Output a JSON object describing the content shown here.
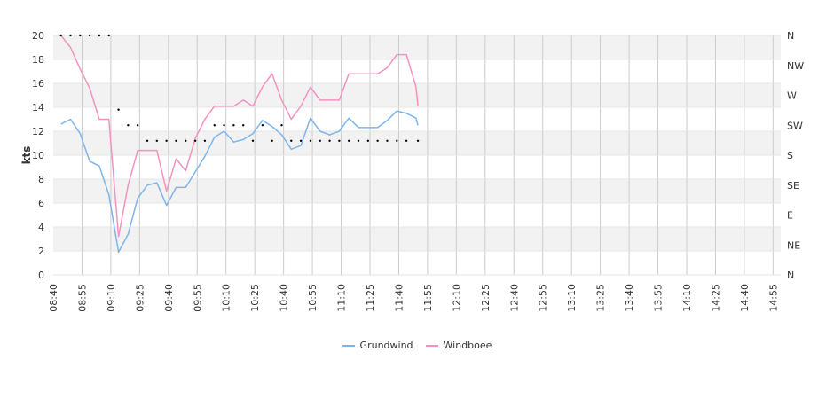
{
  "chart_data": {
    "type": "line",
    "ylabel": "kts",
    "ylim": [
      0,
      20
    ],
    "y_ticks": [
      "0",
      "2",
      "4",
      "6",
      "8",
      "10",
      "12",
      "14",
      "16",
      "18",
      "20"
    ],
    "x_ticks": [
      "08:40",
      "08:55",
      "09:10",
      "09:25",
      "09:40",
      "09:55",
      "10:10",
      "10:25",
      "10:40",
      "10:55",
      "11:10",
      "11:25",
      "11:40",
      "11:55",
      "12:10",
      "12:25",
      "12:40",
      "12:55",
      "13:10",
      "13:25",
      "13:40",
      "13:55",
      "14:10",
      "14:25",
      "14:40",
      "14:55"
    ],
    "x_start": "08:40",
    "x_end": "14:59",
    "right_axis_labels": [
      "N",
      "NE",
      "E",
      "SE",
      "S",
      "SW",
      "W",
      "NW",
      "N"
    ],
    "grid": true,
    "legend_position": "bottom",
    "series": [
      {
        "name": "Grundwind",
        "color": "#7cb5ec",
        "points": [
          [
            "08:44",
            12.6
          ],
          [
            "08:49",
            13.0
          ],
          [
            "08:54",
            11.8
          ],
          [
            "08:59",
            9.5
          ],
          [
            "09:04",
            9.1
          ],
          [
            "09:09",
            6.7
          ],
          [
            "09:14",
            1.9
          ],
          [
            "09:19",
            3.4
          ],
          [
            "09:24",
            6.4
          ],
          [
            "09:29",
            7.5
          ],
          [
            "09:34",
            7.7
          ],
          [
            "09:39",
            5.8
          ],
          [
            "09:44",
            7.3
          ],
          [
            "09:49",
            7.3
          ],
          [
            "09:54",
            8.6
          ],
          [
            "09:59",
            9.9
          ],
          [
            "10:04",
            11.5
          ],
          [
            "10:09",
            12.0
          ],
          [
            "10:14",
            11.1
          ],
          [
            "10:19",
            11.3
          ],
          [
            "10:24",
            11.8
          ],
          [
            "10:29",
            12.9
          ],
          [
            "10:34",
            12.4
          ],
          [
            "10:39",
            11.7
          ],
          [
            "10:44",
            10.5
          ],
          [
            "10:49",
            10.8
          ],
          [
            "10:54",
            13.1
          ],
          [
            "10:59",
            12.0
          ],
          [
            "11:04",
            11.7
          ],
          [
            "11:09",
            12.0
          ],
          [
            "11:14",
            13.1
          ],
          [
            "11:19",
            12.3
          ],
          [
            "11:24",
            12.3
          ],
          [
            "11:29",
            12.3
          ],
          [
            "11:34",
            12.9
          ],
          [
            "11:39",
            13.7
          ],
          [
            "11:44",
            13.5
          ],
          [
            "11:49",
            13.1
          ],
          [
            "11:50",
            12.5
          ]
        ]
      },
      {
        "name": "Windboee",
        "color": "#f491c0",
        "points": [
          [
            "08:44",
            20.0
          ],
          [
            "08:49",
            19.0
          ],
          [
            "08:54",
            17.2
          ],
          [
            "08:59",
            15.6
          ],
          [
            "09:04",
            13.0
          ],
          [
            "09:09",
            13.0
          ],
          [
            "09:14",
            3.2
          ],
          [
            "09:19",
            7.5
          ],
          [
            "09:24",
            10.4
          ],
          [
            "09:29",
            10.4
          ],
          [
            "09:34",
            10.4
          ],
          [
            "09:39",
            7.0
          ],
          [
            "09:44",
            9.7
          ],
          [
            "09:49",
            8.7
          ],
          [
            "09:54",
            11.4
          ],
          [
            "09:59",
            13.0
          ],
          [
            "10:04",
            14.1
          ],
          [
            "10:09",
            14.1
          ],
          [
            "10:14",
            14.1
          ],
          [
            "10:19",
            14.6
          ],
          [
            "10:24",
            14.1
          ],
          [
            "10:29",
            15.7
          ],
          [
            "10:34",
            16.8
          ],
          [
            "10:39",
            14.6
          ],
          [
            "10:44",
            13.0
          ],
          [
            "10:49",
            14.1
          ],
          [
            "10:54",
            15.7
          ],
          [
            "10:59",
            14.6
          ],
          [
            "11:04",
            14.6
          ],
          [
            "11:09",
            14.6
          ],
          [
            "11:14",
            16.8
          ],
          [
            "11:19",
            16.8
          ],
          [
            "11:24",
            16.8
          ],
          [
            "11:29",
            16.8
          ],
          [
            "11:34",
            17.3
          ],
          [
            "11:39",
            18.4
          ],
          [
            "11:44",
            18.4
          ],
          [
            "11:49",
            15.7
          ],
          [
            "11:50",
            14.1
          ]
        ]
      },
      {
        "name": "",
        "marker": "dot",
        "color": "#000000",
        "points": [
          [
            "08:44",
            20.0
          ],
          [
            "08:49",
            20.0
          ],
          [
            "08:54",
            20.0
          ],
          [
            "08:59",
            20.0
          ],
          [
            "09:04",
            20.0
          ],
          [
            "09:09",
            20.0
          ],
          [
            "09:14",
            13.8
          ],
          [
            "09:19",
            12.5
          ],
          [
            "09:24",
            12.5
          ],
          [
            "09:29",
            11.2
          ],
          [
            "09:34",
            11.2
          ],
          [
            "09:39",
            11.2
          ],
          [
            "09:44",
            11.2
          ],
          [
            "09:49",
            11.2
          ],
          [
            "09:54",
            11.2
          ],
          [
            "09:59",
            11.2
          ],
          [
            "10:04",
            12.5
          ],
          [
            "10:09",
            12.5
          ],
          [
            "10:14",
            12.5
          ],
          [
            "10:19",
            12.5
          ],
          [
            "10:24",
            11.2
          ],
          [
            "10:29",
            12.5
          ],
          [
            "10:34",
            11.2
          ],
          [
            "10:39",
            12.5
          ],
          [
            "10:44",
            11.2
          ],
          [
            "10:49",
            11.2
          ],
          [
            "10:54",
            11.2
          ],
          [
            "10:59",
            11.2
          ],
          [
            "11:04",
            11.2
          ],
          [
            "11:09",
            11.2
          ],
          [
            "11:14",
            11.2
          ],
          [
            "11:19",
            11.2
          ],
          [
            "11:24",
            11.2
          ],
          [
            "11:29",
            11.2
          ],
          [
            "11:34",
            11.2
          ],
          [
            "11:39",
            11.2
          ],
          [
            "11:44",
            11.2
          ],
          [
            "11:50",
            11.2
          ]
        ]
      }
    ]
  },
  "legend": [
    {
      "label": "Grundwind",
      "color": "#7cb5ec"
    },
    {
      "label": "Windboee",
      "color": "#f491c0"
    }
  ]
}
